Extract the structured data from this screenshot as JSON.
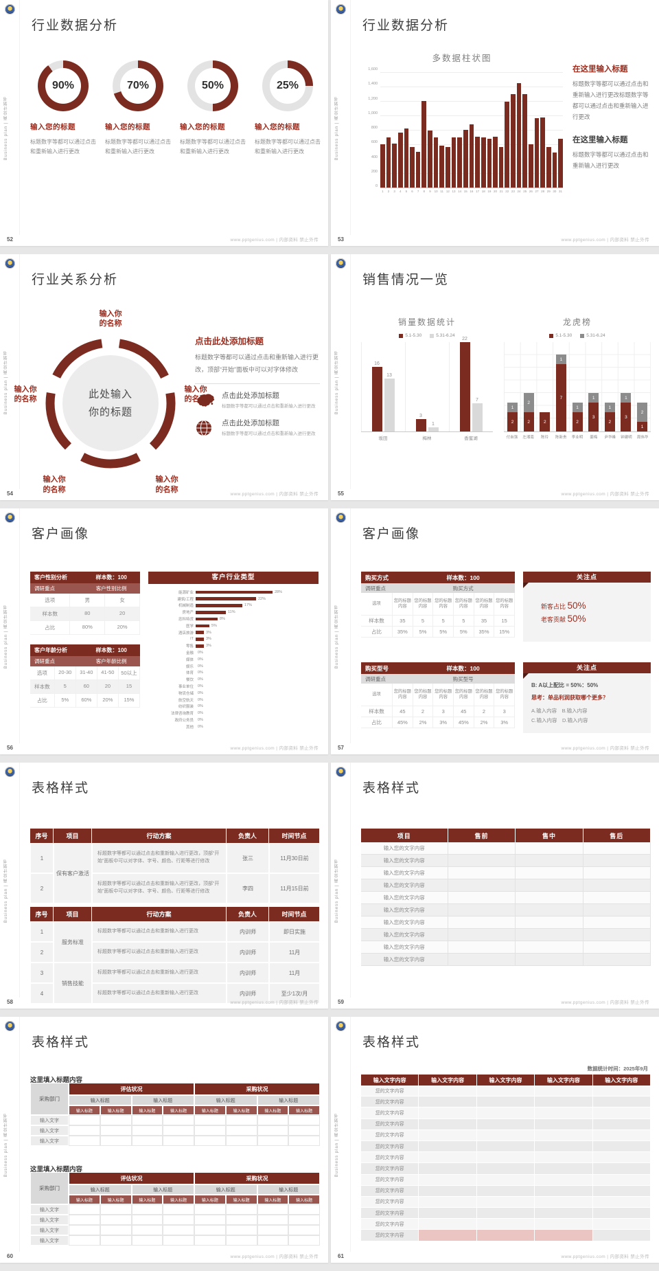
{
  "footer_site": "www.pptgenius.com | 内部资料 禁止外传",
  "sidebar_text": "Business plan | 商业计划书",
  "colors": {
    "maroon": "#7B2B20",
    "maroon_bright": "#9B2D1F",
    "sub_maroon": "#9A564E",
    "gray_series": "#D9D9D9",
    "stack_gray": "#8C8C8C",
    "pink": "#EAC5C1"
  },
  "slides": [
    {
      "num": "52",
      "type": "donuts",
      "title": "行业数据分析",
      "item_label": "输入您的标题",
      "item_desc": "标题数字等都可以通过点击和重新输入进行更改",
      "donuts": [
        {
          "pct": "90%",
          "v": 90
        },
        {
          "pct": "70%",
          "v": 70
        },
        {
          "pct": "50%",
          "v": 50
        },
        {
          "pct": "25%",
          "v": 25
        }
      ]
    },
    {
      "num": "53",
      "type": "bars",
      "title": "行业数据分析",
      "chart": {
        "type": "bar",
        "title": "多数据柱状图",
        "ymax": 1600,
        "yticks": [
          "1,600",
          "1,400",
          "1,200",
          "1,000",
          "800",
          "600",
          "400",
          "200",
          "0"
        ],
        "xlabels": [
          "1",
          "2",
          "3",
          "4",
          "5",
          "6",
          "7",
          "8",
          "9",
          "10",
          "11",
          "12",
          "13",
          "14",
          "15",
          "16",
          "17",
          "18",
          "19",
          "20",
          "21",
          "22",
          "23",
          "24",
          "25",
          "26",
          "27",
          "28",
          "29",
          "30",
          "31"
        ],
        "values": [
          600,
          700,
          610,
          760,
          820,
          560,
          500,
          1200,
          790,
          700,
          580,
          560,
          700,
          700,
          800,
          880,
          710,
          700,
          680,
          705,
          560,
          1190,
          1300,
          1450,
          1300,
          600,
          960,
          970,
          560,
          490,
          680
        ]
      },
      "blocks": [
        {
          "h": "在这里输入标题",
          "accent": true,
          "p": "标题数字等都可以通过点击和重新输入进行更改标题数字等都可以通过点击和重新输入进行更改"
        },
        {
          "h": "在这里输入标题",
          "accent": false,
          "p": "标题数字等都可以通过点击和重新输入进行更改"
        }
      ]
    },
    {
      "num": "54",
      "type": "relation",
      "title": "行业关系分析",
      "center": [
        "此处输入",
        "你的标题"
      ],
      "petal": [
        "输入你",
        "的名称"
      ],
      "right_heading": "点击此处添加标题",
      "right_para": "标题数字等都可以通过点击和重新输入进行更改，顶部“开始”面板中可以对字体修改",
      "items": [
        {
          "icon": "china-map-icon",
          "t": "点击此处添加标题",
          "p": "标题数字等都可以通过点击和重新输入进行更改"
        },
        {
          "icon": "globe-icon",
          "t": "点击此处添加标题",
          "p": "标题数字等都可以通过点击和重新输入进行更改"
        }
      ]
    },
    {
      "num": "55",
      "type": "sales",
      "title": "销售情况一览",
      "left": {
        "type": "bar",
        "title": "销量数据统计",
        "legend": [
          "5.1-5.30",
          "5.31-6.24"
        ],
        "categories": [
          "坂田",
          "梅林",
          "香蜜湖"
        ],
        "series": [
          {
            "name": "5.1-5.30",
            "values": [
              16,
              3,
              22
            ]
          },
          {
            "name": "5.31-6.24",
            "values": [
              13,
              1,
              7
            ]
          }
        ]
      },
      "right": {
        "type": "stacked-bar",
        "title": "龙虎榜",
        "legend": [
          "5.1-5.30",
          "5.31-6.24"
        ],
        "categories": [
          "付自强",
          "左湘南",
          "陈玲",
          "陈新贵",
          "李业明",
          "姜梅",
          "尹华峰",
          "钟建明",
          "周伟华"
        ],
        "series": [
          {
            "name": "5.1-5.30",
            "values": [
              2,
              2,
              2,
              7,
              2,
              3,
              2,
              3,
              1
            ]
          },
          {
            "name": "5.31-6.24",
            "values": [
              1,
              2,
              0,
              1,
              1,
              1,
              1,
              1,
              2
            ]
          }
        ]
      }
    },
    {
      "num": "56",
      "type": "profile",
      "title": "客户画像",
      "tables": [
        {
          "header": [
            "客户性别分析",
            "样本数：100"
          ],
          "sub": [
            "调研重点",
            "客户性别比例"
          ],
          "rows": [
            [
              "选项",
              "男",
              "女"
            ],
            [
              "样本数",
              "80",
              "20"
            ],
            [
              "占比",
              "80%",
              "20%"
            ]
          ]
        },
        {
          "header": [
            "客户年龄分析",
            "样本数：100"
          ],
          "sub": [
            "调研重点",
            "客户年龄比例"
          ],
          "rows": [
            [
              "选项",
              "20-30",
              "31-40",
              "41-50",
              "50以上"
            ],
            [
              "样本数",
              "5",
              "60",
              "20",
              "15"
            ],
            [
              "占比",
              "5%",
              "60%",
              "20%",
              "15%"
            ]
          ]
        }
      ],
      "hbar": {
        "type": "bar",
        "title": "客户行业类型",
        "items": [
          [
            "能源矿业",
            28
          ],
          [
            "建筑/工程",
            22
          ],
          [
            "机械制造",
            17
          ],
          [
            "房地产",
            11
          ],
          [
            "忠科特货",
            8
          ],
          [
            "医学",
            5
          ],
          [
            "酒店旅游",
            3
          ],
          [
            "IT",
            3
          ],
          [
            "零售",
            3
          ],
          [
            "金融",
            0
          ],
          [
            "媒体",
            0
          ],
          [
            "娱乐",
            0
          ],
          [
            "体育",
            0
          ],
          [
            "餐饮",
            0
          ],
          [
            "事业单位",
            0
          ],
          [
            "物流仓储",
            0
          ],
          [
            "航空航天",
            0
          ],
          [
            "纺织服装",
            0
          ],
          [
            "法律咨询教育",
            0
          ],
          [
            "政府公务员",
            0
          ],
          [
            "其他",
            0
          ]
        ]
      }
    },
    {
      "num": "57",
      "type": "purchase",
      "title": "客户画像",
      "row_labels": [
        "选项",
        "样本数",
        "占比"
      ],
      "blocks": [
        {
          "thead": [
            "购买方式",
            "样本数：100"
          ],
          "sub": [
            "调研重点",
            "购买方式"
          ],
          "opt": "您的标题内容",
          "counts": [
            "35",
            "5",
            "5",
            "5",
            "35",
            "15"
          ],
          "pcts": [
            "35%",
            "5%",
            "5%",
            "5%",
            "35%",
            "15%"
          ],
          "callout": {
            "title": "关注点",
            "kind": "big",
            "lines": [
              [
                "新客占比 ",
                "50%"
              ],
              [
                "老客贡献 ",
                "50%"
              ]
            ]
          }
        },
        {
          "thead": [
            "购买型号",
            "样本数：100"
          ],
          "sub": [
            "调研重点",
            "购买型号"
          ],
          "opt": "您的标题内容",
          "counts": [
            "45",
            "2",
            "3",
            "45",
            "2",
            "3"
          ],
          "pcts": [
            "45%",
            "2%",
            "3%",
            "45%",
            "2%",
            "3%"
          ],
          "callout": {
            "title": "关注点",
            "kind": "list",
            "l1": "B: A以上配比 = 50%：50%",
            "l2a": "思考：",
            "l2b": "单品利润获取哪个更多？",
            "l3": "A.输入内容　B.输入内容",
            "l4": "C.输入内容　D.输入内容"
          }
        }
      ]
    },
    {
      "num": "58",
      "type": "plan",
      "title": "表格样式",
      "headers": [
        "序号",
        "项目",
        "行动方案",
        "负责人",
        "时间节点"
      ],
      "tables": [
        {
          "tall": true,
          "rows": [
            {
              "no": "1",
              "proj": "保有客户激活",
              "projspan": 2,
              "action": "标题数字等都可以通过点击和重新输入进行更改，顶部“开始”面板中可以对字体、字号、颜色、行距等进行修改",
              "owner": "张三",
              "time": "11月30日前"
            },
            {
              "no": "2",
              "action": "标题数字等都可以通过点击和重新输入进行更改，顶部“开始”面板中可以对字体、字号、颜色、行距等进行修改",
              "owner": "李四",
              "time": "11月15日前"
            }
          ]
        },
        {
          "tall": false,
          "rows": [
            {
              "no": "1",
              "proj": "服务标准",
              "projspan": 2,
              "action": "标题数字等都可以通过点击和重新输入进行更改",
              "owner": "内训师",
              "time": "即日实施"
            },
            {
              "no": "2",
              "action": "标题数字等都可以通过点击和重新输入进行更改",
              "owner": "内训师",
              "time": "11月"
            },
            {
              "no": "3",
              "proj": "销售技能",
              "projspan": 2,
              "action": "标题数字等都可以通过点击和重新输入进行更改",
              "owner": "内训师",
              "time": "11月"
            },
            {
              "no": "4",
              "action": "标题数字等都可以通过点击和重新输入进行更改",
              "owner": "内训师",
              "time": "至少1次/月"
            }
          ]
        }
      ]
    },
    {
      "num": "59",
      "type": "simple-table",
      "title": "表格样式",
      "headers": [
        "项目",
        "售前",
        "售中",
        "售后"
      ],
      "row_label": "输入您的文字内容",
      "row_count": 10
    },
    {
      "num": "60",
      "type": "matrix",
      "title": "表格样式",
      "section_label": "这里填入标题内容",
      "corner": "采购部门",
      "groups": [
        "评估状况",
        "采购状况"
      ],
      "sub_label": "输入标题",
      "sub2_label": "输入标题",
      "row_label": "输入文字",
      "sections": [
        {
          "rows": 3
        },
        {
          "rows": 4
        }
      ]
    },
    {
      "num": "61",
      "type": "grid-table",
      "title": "表格样式",
      "note": "数据统计时间：2025年9月",
      "header_label": "输入文字内容",
      "cols": 5,
      "row_label": "您的文字内容",
      "rows": 14,
      "pink_row": 13,
      "pink_cols": [
        1,
        2,
        3
      ]
    }
  ]
}
